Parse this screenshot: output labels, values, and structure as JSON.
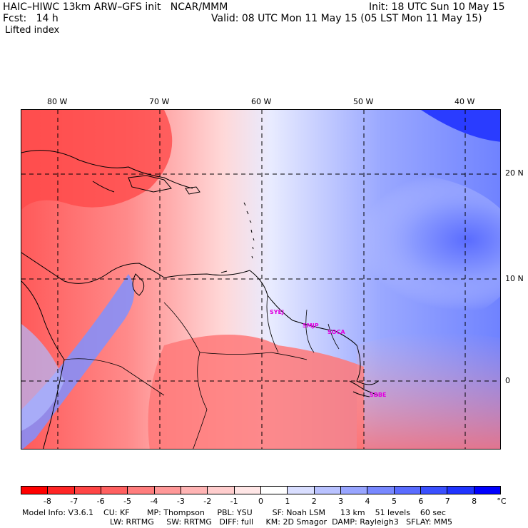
{
  "header": {
    "model_line": "HAIC–HIWC 13km ARW–GFS init   NCAR/MMM",
    "init_line": "Init: 18 UTC Sun 10 May 15",
    "fcst_line": "Fcst:   14 h",
    "valid_line": "Valid: 08 UTC Mon 11 May 15 (05 LST Mon 11 May 15)",
    "field_name": "Lifted index"
  },
  "map": {
    "lon_labels": [
      "80 W",
      "70 W",
      "60 W",
      "50 W",
      "40 W"
    ],
    "lat_labels": [
      "20 N",
      "10 N",
      "0"
    ],
    "stations": [
      "SYEJ",
      "SMJP",
      "SOCA",
      "SBBE"
    ],
    "colors": {
      "negative": "#ff3030",
      "positive": "#3050ff",
      "grid": "#000000"
    }
  },
  "colorbar": {
    "labels": [
      "-8",
      "-7",
      "-6",
      "-5",
      "-4",
      "-3",
      "-2",
      "-1",
      "0",
      "1",
      "2",
      "3",
      "4",
      "5",
      "6",
      "7",
      "8"
    ],
    "unit": "°C",
    "colors": [
      "#ff0000",
      "#ff2525",
      "#ff4545",
      "#ff6060",
      "#ff7d7d",
      "#ff9898",
      "#ffb4b4",
      "#ffcdcd",
      "#ffe6e6",
      "#ffffff",
      "#d9deff",
      "#b9c2ff",
      "#98a5ff",
      "#7888ff",
      "#5a6cff",
      "#3a50ff",
      "#2034ff",
      "#0000ff"
    ]
  },
  "footer": {
    "line1": "Model Info: V3.6.1    CU: KF       MP: Thompson     PBL: YSU        SF: Noah LSM      13 km    51 levels    60 sec",
    "line2": "LW: RRTMG     SW: RRTMG   DIFF: full     KM: 2D Smagor  DAMP: Rayleigh3   SFLAY: MM5"
  }
}
